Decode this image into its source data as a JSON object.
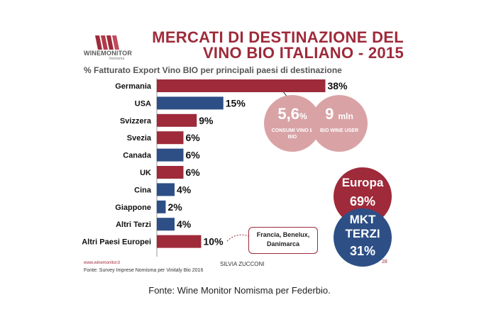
{
  "header": {
    "title_line1": "MERCATI DI DESTINAZIONE DEL",
    "title_line2": "VINO BIO ITALIANO - 2015",
    "subtitle": "% Fatturato Export Vino BIO per principali paesi di destinazione"
  },
  "logo": {
    "name": "WINEMONITOR",
    "sub": "Nomisma"
  },
  "chart_data": {
    "type": "bar",
    "orientation": "horizontal",
    "categories": [
      "Germania",
      "USA",
      "Svizzera",
      "Svezia",
      "Canada",
      "UK",
      "Cina",
      "Giappone",
      "Altri Terzi",
      "Altri Paesi Europei"
    ],
    "values": [
      38,
      15,
      9,
      6,
      6,
      6,
      4,
      2,
      4,
      10
    ],
    "value_labels": [
      "38%",
      "15%",
      "9%",
      "6%",
      "6%",
      "6%",
      "4%",
      "2%",
      "4%",
      "10%"
    ],
    "group": [
      "europa",
      "terzi",
      "europa",
      "europa",
      "terzi",
      "europa",
      "terzi",
      "terzi",
      "terzi",
      "europa"
    ],
    "colors": {
      "europa": "#9e2a3a",
      "terzi": "#2d4f86"
    },
    "xlim": [
      0,
      40
    ],
    "grid": false,
    "legend": "none"
  },
  "bubbles": {
    "consumi": {
      "value": "5,6",
      "unit": "%",
      "label": "CONSUMI VINO È BIO"
    },
    "user": {
      "value": "9",
      "unit": "mln",
      "label": "BIO WINE USER"
    },
    "europa": {
      "title": "Europa",
      "value": "69%"
    },
    "terzi": {
      "title_line1": "MKT",
      "title_line2": "TERZI",
      "value": "31%"
    }
  },
  "callout": {
    "line1": "Francia, Benelux,",
    "line2": "Danimarca"
  },
  "footer": {
    "site": "www.winemonitor.it",
    "presenter": "SILVIA ZUCCONI",
    "source_small": "Fonte: Survey Imprese Nomisma per Vinitaly Bio 2016",
    "page_number": "28",
    "caption": "Fonte: Wine Monitor Nomisma per Federbio."
  }
}
